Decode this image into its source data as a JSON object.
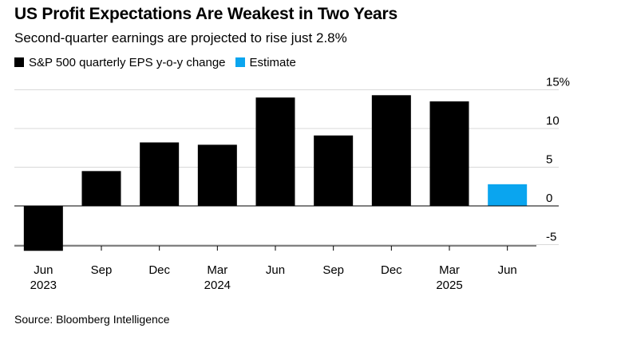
{
  "title": "US Profit Expectations Are Weakest in Two Years",
  "subtitle": "Second-quarter earnings are projected to rise just 2.8%",
  "legend": [
    {
      "label": "S&P 500 quarterly EPS y-o-y change",
      "color": "#000000"
    },
    {
      "label": "Estimate",
      "color": "#0aa5ef"
    }
  ],
  "source": "Source: Bloomberg Intelligence",
  "chart_data": {
    "type": "bar",
    "categories": [
      "Jun",
      "Sep",
      "Dec",
      "Mar",
      "Jun",
      "Sep",
      "Dec",
      "Mar",
      "Jun"
    ],
    "year_labels": [
      "2023",
      "",
      "",
      "2024",
      "",
      "",
      "",
      "2025",
      ""
    ],
    "series": [
      {
        "name": "S&P 500 quarterly EPS y-o-y change",
        "color": "#000000",
        "values": [
          -5.8,
          4.5,
          8.2,
          7.9,
          14.0,
          9.1,
          14.3,
          13.5,
          null
        ]
      },
      {
        "name": "Estimate",
        "color": "#0aa5ef",
        "values": [
          null,
          null,
          null,
          null,
          null,
          null,
          null,
          null,
          2.8
        ]
      }
    ],
    "ylim": [
      -5.8,
      15
    ],
    "yticks": [
      15,
      10,
      5,
      0,
      -5
    ],
    "ytick_labels": [
      "15%",
      "10",
      "5",
      "0",
      "-5"
    ],
    "grid": true,
    "legend_position": "top-left"
  }
}
